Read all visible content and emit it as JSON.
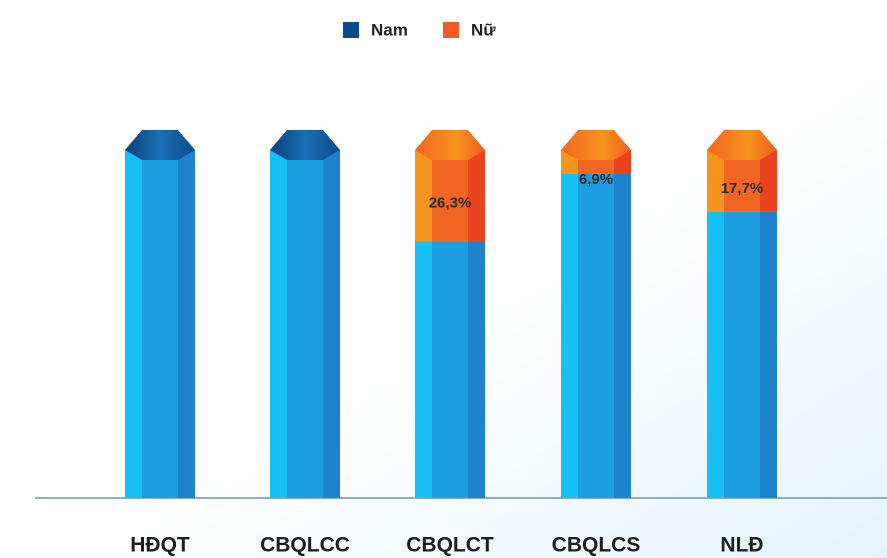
{
  "chart_data": {
    "type": "bar",
    "stacked": true,
    "categories": [
      "HĐQT",
      "CBQLCC",
      "CBQLCT",
      "CBQLCS",
      "NLĐ"
    ],
    "series": [
      {
        "name": "Nam",
        "color": "#0d4a8c",
        "values": [
          100,
          100,
          73.7,
          93.1,
          82.3
        ]
      },
      {
        "name": "Nữ",
        "color": "#f15a24",
        "values": [
          0,
          0,
          26.3,
          6.9,
          17.7
        ],
        "value_labels": [
          null,
          null,
          "26,3%",
          "6,9%",
          "17,7%"
        ]
      }
    ],
    "ylim": [
      0,
      100
    ],
    "legend": "top"
  }
}
